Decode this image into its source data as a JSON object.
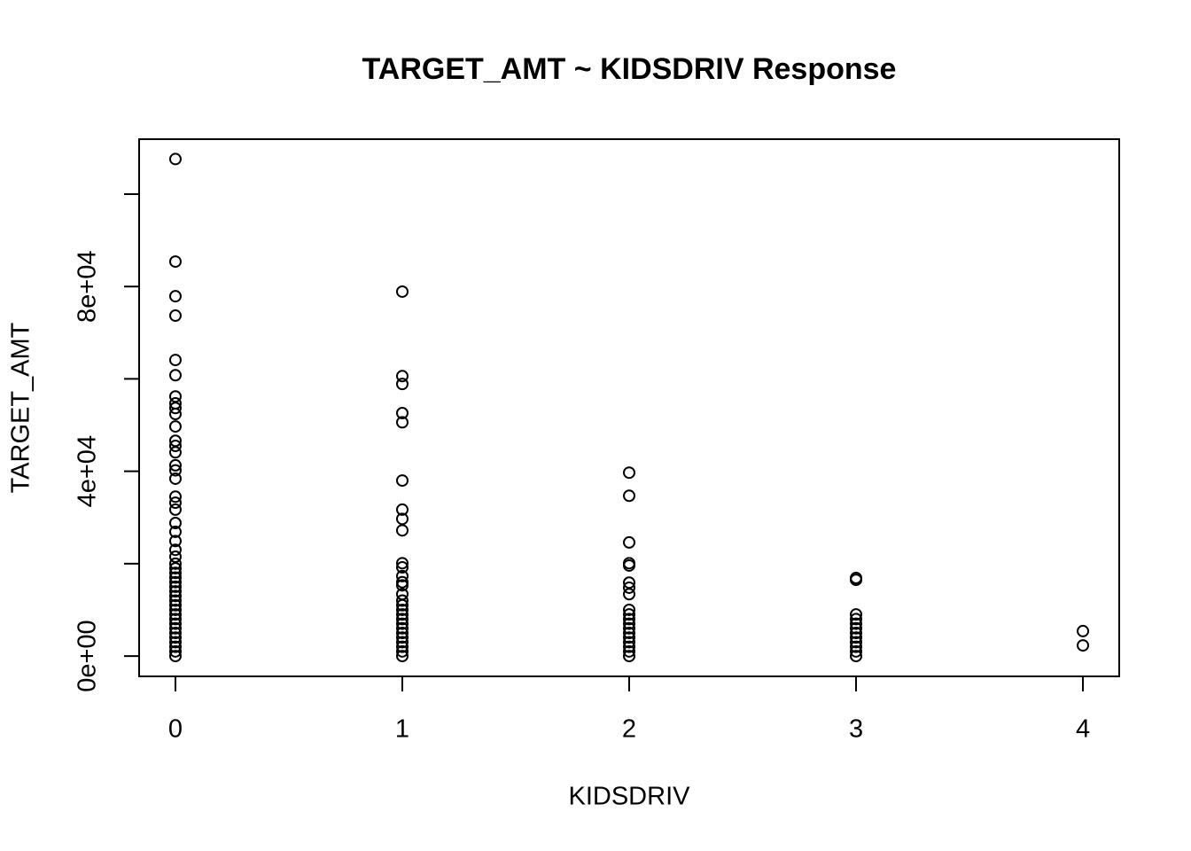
{
  "chart_data": {
    "type": "scatter",
    "title": "TARGET_AMT ~ KIDSDRIV Response",
    "x_label": "KIDSDRIV",
    "y_label": "TARGET_AMT",
    "xlim": [
      -0.16,
      4.16
    ],
    "ylim": [
      -4400,
      111900
    ],
    "xticks": [
      0,
      1,
      2,
      3,
      4
    ],
    "yticks": [
      {
        "value": 0,
        "label": "0e+00"
      },
      {
        "value": 40000,
        "label": "4e+04"
      },
      {
        "value": 80000,
        "label": "8e+04"
      }
    ],
    "minor_yticks": [
      20000,
      60000,
      100000
    ],
    "color": "#000000",
    "series": [
      {
        "x": [
          0,
          0,
          0,
          0,
          0,
          0,
          0,
          0,
          0,
          0,
          0,
          0,
          0,
          0,
          0,
          0,
          0,
          0,
          0,
          0,
          0,
          0,
          0,
          0,
          0,
          0,
          0,
          0,
          0,
          0,
          0,
          0,
          0,
          0,
          0,
          0,
          0,
          0,
          0,
          0,
          0,
          0,
          0,
          0,
          0,
          0,
          1,
          1,
          1,
          1,
          1,
          1,
          1,
          1,
          1,
          1,
          1,
          1,
          1,
          1,
          1,
          1,
          1,
          1,
          1,
          1,
          1,
          1,
          1,
          1,
          1,
          1,
          1,
          1,
          2,
          2,
          2,
          2,
          2,
          2,
          2,
          2,
          2,
          2,
          2,
          2,
          2,
          2,
          2,
          2,
          2,
          2,
          2,
          3,
          3,
          3,
          3,
          3,
          3,
          3,
          3,
          3,
          3,
          3,
          3,
          4,
          4
        ],
        "y": [
          107600,
          85400,
          77900,
          73700,
          64100,
          60800,
          56200,
          54700,
          53700,
          52400,
          49700,
          46600,
          45500,
          44100,
          41300,
          40200,
          38400,
          34500,
          33200,
          31700,
          28800,
          26900,
          24900,
          23000,
          21500,
          20000,
          19000,
          18000,
          17000,
          16000,
          15000,
          14000,
          13000,
          12000,
          11000,
          10000,
          9000,
          8000,
          7000,
          6000,
          5000,
          4000,
          3000,
          2000,
          1000,
          0,
          78900,
          60600,
          58900,
          52600,
          50600,
          38000,
          31700,
          29700,
          27200,
          20100,
          19200,
          17300,
          16000,
          15300,
          13400,
          12000,
          11000,
          10000,
          9000,
          8000,
          7000,
          6000,
          5000,
          4000,
          3000,
          2000,
          1000,
          0,
          39700,
          34700,
          24600,
          20100,
          19600,
          15900,
          14800,
          13400,
          10000,
          9000,
          8000,
          7000,
          6000,
          5000,
          4000,
          3000,
          2000,
          1000,
          0,
          16900,
          16500,
          9000,
          8000,
          7000,
          6000,
          5000,
          4000,
          3000,
          2000,
          1000,
          0,
          5400,
          2300
        ]
      }
    ]
  }
}
